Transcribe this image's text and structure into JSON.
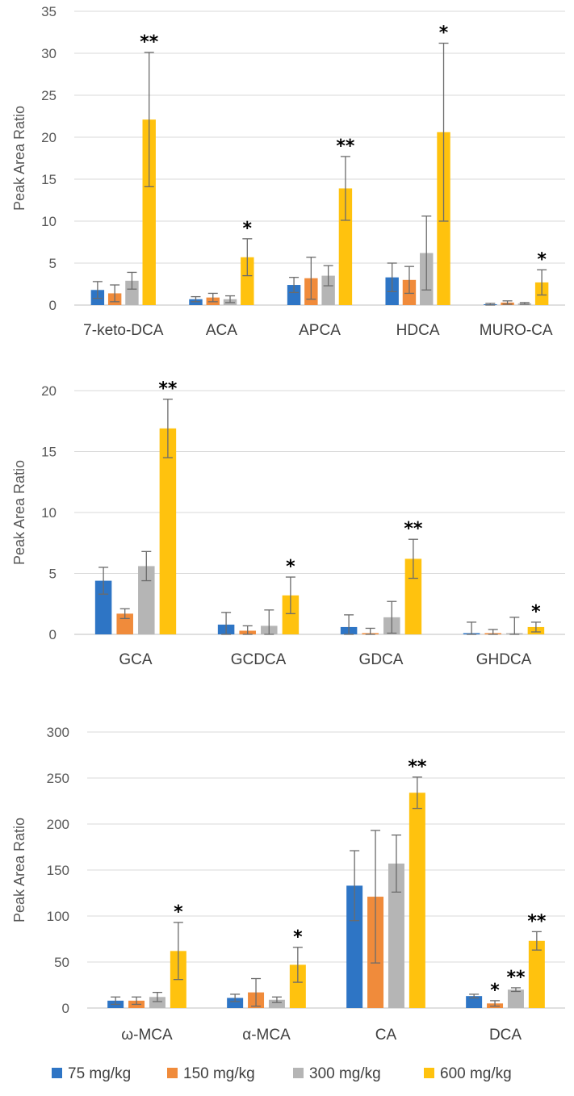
{
  "series_colors": [
    "#2e75c5",
    "#f08b3b",
    "#b5b5b5",
    "#ffc20e"
  ],
  "legend": [
    "75 mg/kg",
    "150 mg/kg",
    "300 mg/kg",
    "600 mg/kg"
  ],
  "chart_data": [
    {
      "type": "bar",
      "ylabel": "Peak Area Ratio",
      "ylim": [
        0,
        35
      ],
      "yticks": [
        "0",
        "5",
        "10",
        "15",
        "20",
        "25",
        "30",
        "35"
      ],
      "categories": [
        "7-keto-DCA",
        "ACA",
        "APCA",
        "HDCA",
        "MURO-CA"
      ],
      "series": [
        {
          "name": "75 mg/kg",
          "values": [
            1.8,
            0.7,
            2.4,
            3.3,
            0.1
          ],
          "errors": [
            1.0,
            0.3,
            0.9,
            1.7,
            0.1
          ]
        },
        {
          "name": "150 mg/kg",
          "values": [
            1.4,
            0.9,
            3.2,
            3.0,
            0.3
          ],
          "errors": [
            1.0,
            0.5,
            2.5,
            1.6,
            0.2
          ]
        },
        {
          "name": "300 mg/kg",
          "values": [
            2.9,
            0.7,
            3.5,
            6.2,
            0.2
          ],
          "errors": [
            1.0,
            0.4,
            1.2,
            4.4,
            0.1
          ]
        },
        {
          "name": "600 mg/kg",
          "values": [
            22.1,
            5.7,
            13.9,
            20.6,
            2.7
          ],
          "errors": [
            8.0,
            2.2,
            3.8,
            10.6,
            1.5
          ]
        }
      ],
      "annotations": [
        "**",
        "*",
        "**",
        "*",
        "*"
      ]
    },
    {
      "type": "bar",
      "ylabel": "Peak Area Ratio",
      "ylim": [
        0,
        20
      ],
      "yticks": [
        "0",
        "5",
        "10",
        "15",
        "20"
      ],
      "categories": [
        "GCA",
        "GCDCA",
        "GDCA",
        "GHDCA"
      ],
      "series": [
        {
          "name": "75 mg/kg",
          "values": [
            4.4,
            0.8,
            0.6,
            0.1
          ],
          "errors": [
            1.1,
            1.0,
            1.0,
            0.9
          ]
        },
        {
          "name": "150 mg/kg",
          "values": [
            1.7,
            0.3,
            0.1,
            0.1
          ],
          "errors": [
            0.4,
            0.4,
            0.4,
            0.3
          ]
        },
        {
          "name": "300 mg/kg",
          "values": [
            5.6,
            0.7,
            1.4,
            0.1
          ],
          "errors": [
            1.2,
            1.3,
            1.3,
            1.3
          ]
        },
        {
          "name": "600 mg/kg",
          "values": [
            16.9,
            3.2,
            6.2,
            0.6
          ],
          "errors": [
            2.4,
            1.5,
            1.6,
            0.4
          ]
        }
      ],
      "annotations": [
        "**",
        "*",
        "**",
        "*"
      ]
    },
    {
      "type": "bar",
      "ylabel": "Peak Area Ratio",
      "ylim": [
        0,
        300
      ],
      "yticks": [
        "0",
        "50",
        "100",
        "150",
        "200",
        "250",
        "300"
      ],
      "categories": [
        "ω-MCA",
        "α-MCA",
        "CA",
        "DCA"
      ],
      "series": [
        {
          "name": "75 mg/kg",
          "values": [
            8,
            11,
            133,
            13
          ],
          "errors": [
            4,
            4,
            38,
            2
          ]
        },
        {
          "name": "150 mg/kg",
          "values": [
            8,
            17,
            121,
            5
          ],
          "errors": [
            4,
            15,
            72,
            3
          ]
        },
        {
          "name": "300 mg/kg",
          "values": [
            12,
            9,
            157,
            20
          ],
          "errors": [
            5,
            3,
            31,
            2
          ]
        },
        {
          "name": "600 mg/kg",
          "values": [
            62,
            47,
            234,
            73
          ],
          "errors": [
            31,
            19,
            17,
            10
          ]
        }
      ],
      "annotations": [
        "*",
        "*",
        "**",
        "*|**|**"
      ]
    }
  ]
}
